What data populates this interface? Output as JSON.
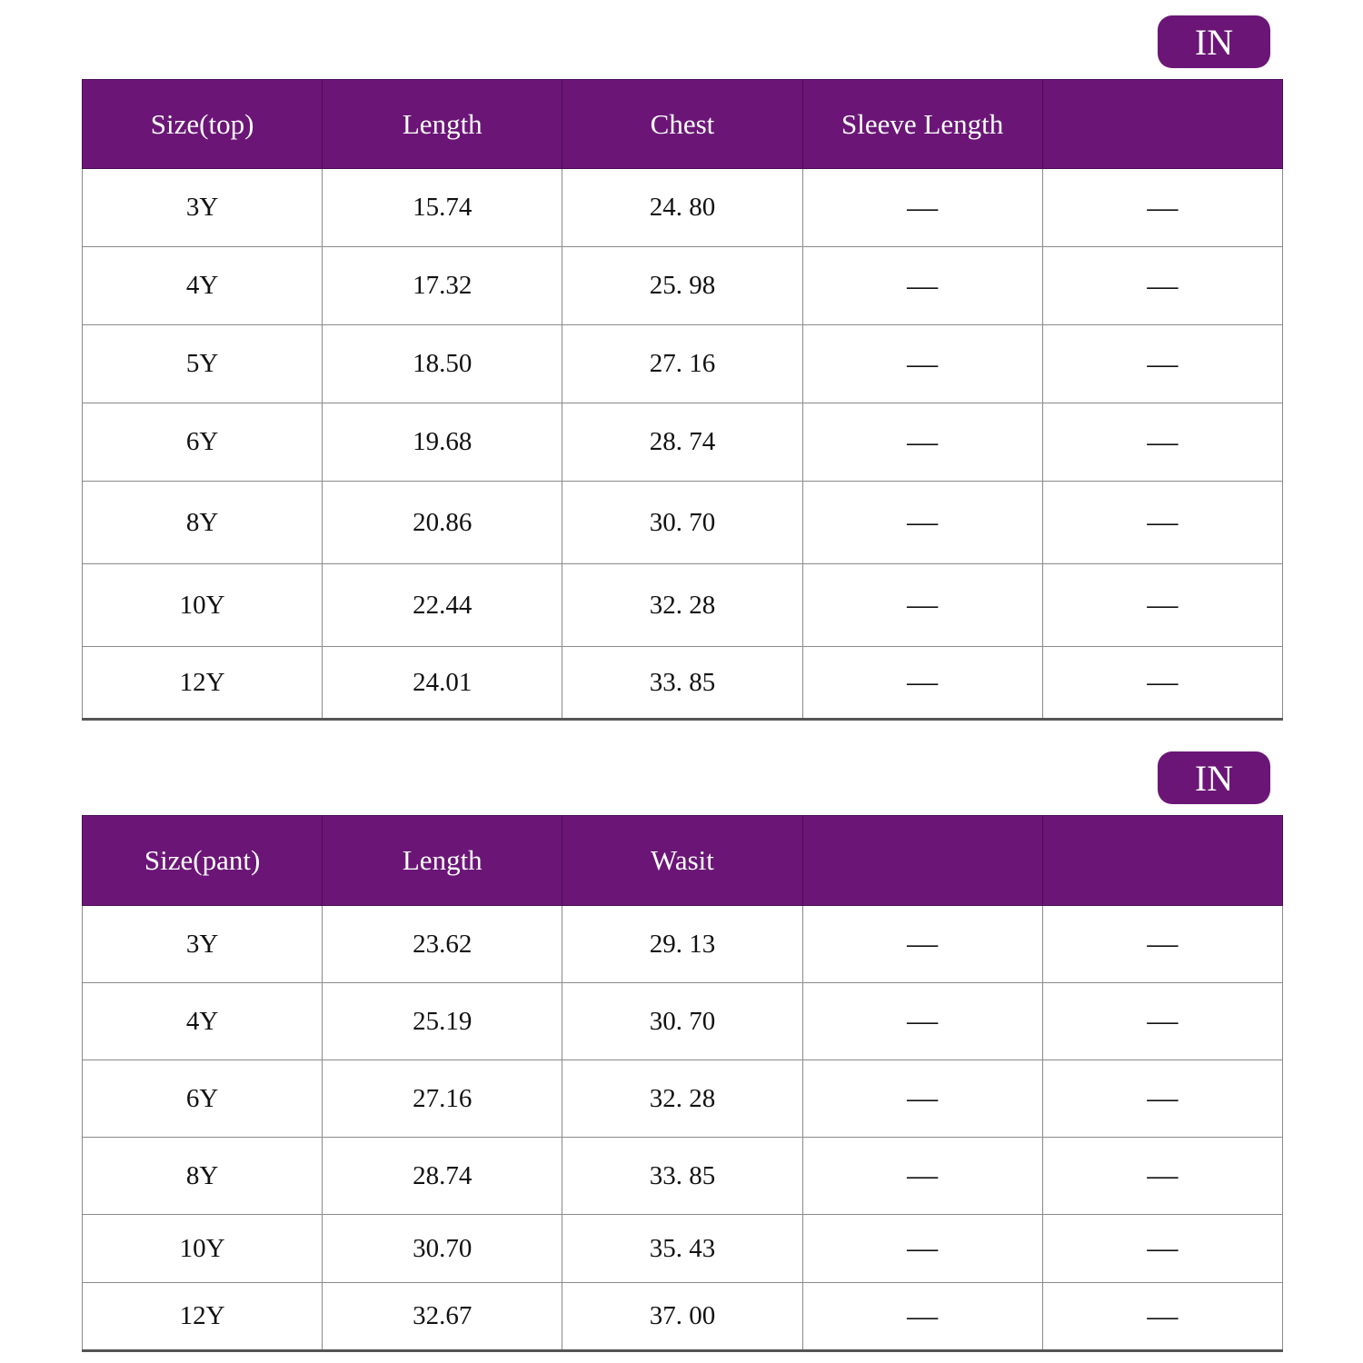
{
  "accent_color": "#6b1677",
  "top": {
    "unit_badge": "IN",
    "headers": [
      "Size(top)",
      "Length",
      "Chest",
      "Sleeve Length",
      ""
    ],
    "rows": [
      [
        "3Y",
        "15.74",
        "24. 80",
        "—",
        "—"
      ],
      [
        "4Y",
        "17.32",
        "25. 98",
        "—",
        "—"
      ],
      [
        "5Y",
        "18.50",
        "27. 16",
        "—",
        "—"
      ],
      [
        "6Y",
        "19.68",
        "28. 74",
        "—",
        "—"
      ],
      [
        "8Y",
        "20.86",
        "30. 70",
        "—",
        "—"
      ],
      [
        "10Y",
        "22.44",
        "32. 28",
        "—",
        "—"
      ],
      [
        "12Y",
        "24.01",
        "33. 85",
        "—",
        "—"
      ]
    ]
  },
  "pant": {
    "unit_badge": "IN",
    "headers": [
      "Size(pant)",
      "Length",
      "Wasit",
      "",
      ""
    ],
    "rows": [
      [
        "3Y",
        "23.62",
        "29. 13",
        "—",
        "—"
      ],
      [
        "4Y",
        "25.19",
        "30. 70",
        "—",
        "—"
      ],
      [
        "6Y",
        "27.16",
        "32. 28",
        "—",
        "—"
      ],
      [
        "8Y",
        "28.74",
        "33. 85",
        "—",
        "—"
      ],
      [
        "10Y",
        "30.70",
        "35. 43",
        "—",
        "—"
      ],
      [
        "12Y",
        "32.67",
        "37. 00",
        "—",
        "—"
      ]
    ]
  }
}
